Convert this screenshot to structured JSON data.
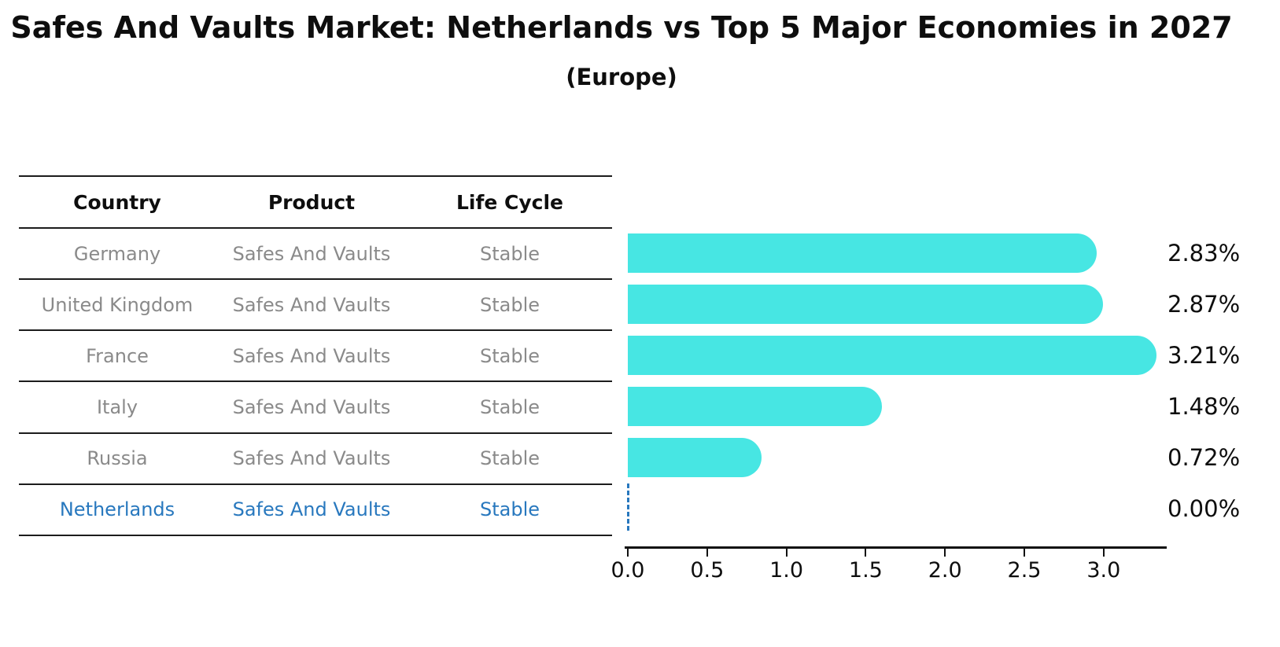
{
  "title": "Safes And Vaults Market: Netherlands vs Top 5 Major Economies in 2027",
  "subtitle": "(Europe)",
  "table": {
    "columns": [
      "Country",
      "Product",
      "Life Cycle"
    ],
    "rows": [
      {
        "country": "Germany",
        "product": "Safes And Vaults",
        "life_cycle": "Stable",
        "highlighted": false
      },
      {
        "country": "United Kingdom",
        "product": "Safes And Vaults",
        "life_cycle": "Stable",
        "highlighted": false
      },
      {
        "country": "France",
        "product": "Safes And Vaults",
        "life_cycle": "Stable",
        "highlighted": false
      },
      {
        "country": "Italy",
        "product": "Safes And Vaults",
        "life_cycle": "Stable",
        "highlighted": false
      },
      {
        "country": "Russia",
        "product": "Safes And Vaults",
        "life_cycle": "Stable",
        "highlighted": false
      },
      {
        "country": "Netherlands",
        "product": "Safes And Vaults",
        "life_cycle": "Stable",
        "highlighted": true
      }
    ]
  },
  "chart_data": {
    "type": "bar",
    "orientation": "horizontal",
    "categories": [
      "Germany",
      "United Kingdom",
      "France",
      "Italy",
      "Russia",
      "Netherlands"
    ],
    "values": [
      2.83,
      2.87,
      3.21,
      1.48,
      0.72,
      0.0
    ],
    "value_labels": [
      "2.83%",
      "2.87%",
      "3.21%",
      "1.48%",
      "0.72%",
      "0.00%"
    ],
    "x_ticks": [
      0.0,
      0.5,
      1.0,
      1.5,
      2.0,
      2.5,
      3.0
    ],
    "x_tick_labels": [
      "0.0",
      "0.5",
      "1.0",
      "1.5",
      "2.0",
      "2.5",
      "3.0"
    ],
    "xlim": [
      0,
      3.4
    ],
    "grid": false,
    "legend": false,
    "bar_color": "#47e6e3",
    "highlight_marker": "dashed-line-at-zero"
  },
  "colors": {
    "bar": "#47e6e3",
    "highlight_text": "#2878be",
    "row_text": "#8a8a8a",
    "axis": "#111111",
    "background": "#ffffff"
  }
}
